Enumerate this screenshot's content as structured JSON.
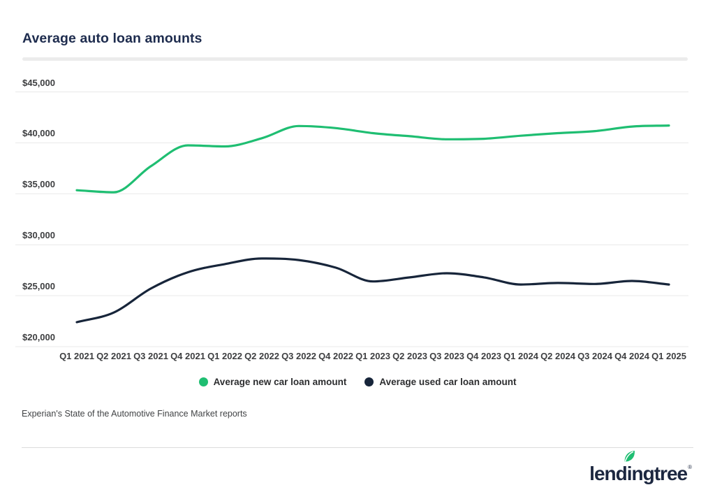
{
  "header": {
    "title": "Average auto loan amounts"
  },
  "source": {
    "note": "Experian's State of the Automotive Finance Market reports"
  },
  "footer": {
    "logo_text": "lendingtree",
    "registered_mark": "®"
  },
  "colors": {
    "brand_green": "#1fbe72",
    "brand_navy": "#17253a",
    "title_navy": "#1e2c4e",
    "axis_text": "#3d3e40",
    "gridline": "#e9e9e9",
    "title_divider": "#ececec",
    "footer_divider": "#dcdcdc"
  },
  "chart_data": {
    "type": "line",
    "title": "Average auto loan amounts",
    "x_categories": [
      "Q1 2021",
      "Q2 2021",
      "Q3 2021",
      "Q4 2021",
      "Q1 2022",
      "Q2 2022",
      "Q3 2022",
      "Q4 2022",
      "Q1 2023",
      "Q2 2023",
      "Q3 2023",
      "Q4 2023",
      "Q1 2024",
      "Q2 2024",
      "Q3 2024",
      "Q4 2024",
      "Q1 2025"
    ],
    "series": [
      {
        "name": "Average new car loan amount",
        "color": "#1fbe72",
        "values": [
          35350,
          35150,
          37700,
          39750,
          39650,
          40450,
          41650,
          41450,
          40950,
          40650,
          40350,
          40400,
          40700,
          40950,
          41150,
          41600,
          41700
        ]
      },
      {
        "name": "Average used car loan amount",
        "color": "#17253a",
        "values": [
          22400,
          23350,
          25700,
          27300,
          28100,
          28650,
          28500,
          27750,
          26400,
          26800,
          27200,
          26800,
          26100,
          26250,
          26150,
          26450,
          26100
        ]
      }
    ],
    "y_ticks": [
      {
        "label": "$45,000",
        "value": 45000
      },
      {
        "label": "$40,000",
        "value": 40000
      },
      {
        "label": "$35,000",
        "value": 35000
      },
      {
        "label": "$30,000",
        "value": 30000
      },
      {
        "label": "$25,000",
        "value": 25000
      },
      {
        "label": "$20,000",
        "value": 20000
      }
    ],
    "ylim": [
      20000,
      45000
    ],
    "xlabel": "",
    "ylabel": "",
    "grid": true,
    "legend_position": "bottom",
    "source": "Experian's State of the Automotive Finance Market reports"
  }
}
